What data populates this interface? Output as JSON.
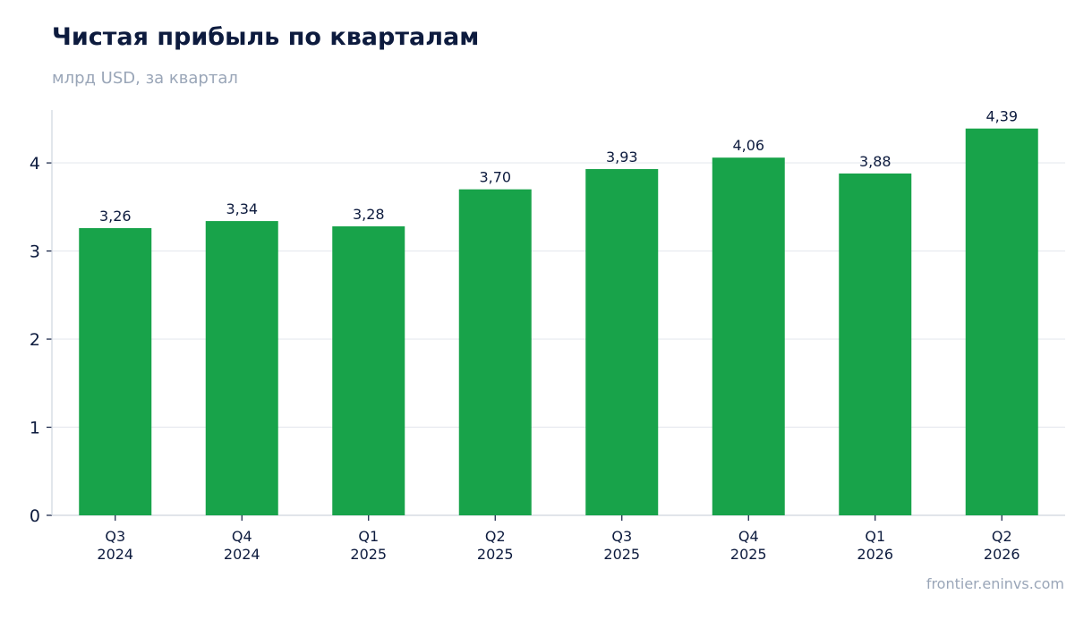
{
  "header": {
    "title": "Чистая прибыль по кварталам",
    "subtitle": "млрд USD, за квартал"
  },
  "footer": {
    "source": "frontier.eninvs.com"
  },
  "colors": {
    "bar": "#18a34a",
    "grid": "#e6e9ef",
    "axis": "#cfd5de",
    "text": "#0d1b3e"
  },
  "chart_data": {
    "type": "bar",
    "categories": [
      [
        "Q3",
        "2024"
      ],
      [
        "Q4",
        "2024"
      ],
      [
        "Q1",
        "2025"
      ],
      [
        "Q2",
        "2025"
      ],
      [
        "Q3",
        "2025"
      ],
      [
        "Q4",
        "2025"
      ],
      [
        "Q1",
        "2026"
      ],
      [
        "Q2",
        "2026"
      ]
    ],
    "values": [
      3.26,
      3.34,
      3.28,
      3.7,
      3.93,
      4.06,
      3.88,
      4.39
    ],
    "value_labels": [
      "3,26",
      "3,34",
      "3,28",
      "3,70",
      "3,93",
      "4,06",
      "3,88",
      "4,39"
    ],
    "ylim": [
      0,
      4.6
    ],
    "yticks": [
      0,
      1,
      2,
      3,
      4
    ],
    "grid": true
  }
}
